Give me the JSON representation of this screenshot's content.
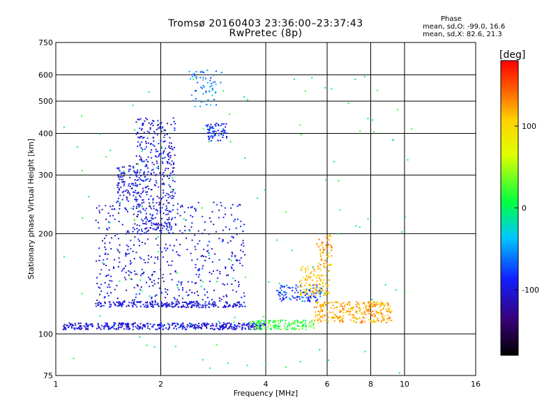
{
  "chart_data": {
    "type": "scatter",
    "title": "Tromsø 20160403 23:36:00–23:37:43",
    "subtitle": "RwPretec (8p)",
    "xlabel": "Frequency [MHz]",
    "ylabel": "Stationary phase Virtual Height [km]",
    "x_scale": "log",
    "y_scale": "log",
    "xlim": [
      1,
      16
    ],
    "ylim": [
      75,
      750
    ],
    "x_ticks": [
      "1",
      "2",
      "4",
      "6",
      "8",
      "10",
      "16"
    ],
    "y_ticks": [
      "75",
      "100",
      "200",
      "300",
      "400",
      "500",
      "600",
      "750"
    ],
    "grid": true,
    "legend": {
      "heading": "Phase",
      "line1": "mean, sd,O: -99.0, 16.6",
      "line2": "mean, sd,X:  82.6, 21.3"
    },
    "colorbar": {
      "label": "[deg]",
      "ticks": [
        "100",
        "0",
        "-100"
      ],
      "tick_values": [
        100,
        0,
        -100
      ],
      "range": [
        -180,
        180
      ]
    },
    "clusters": [
      {
        "x": [
          1.05,
          4.0
        ],
        "y": [
          103,
          108
        ],
        "n": 420,
        "phase": -100
      },
      {
        "x": [
          3.6,
          5.5
        ],
        "y": [
          103,
          110
        ],
        "n": 140,
        "phase": 20
      },
      {
        "x": [
          5.5,
          9.2
        ],
        "y": [
          108,
          125
        ],
        "n": 300,
        "phase": 120
      },
      {
        "x": [
          1.3,
          3.5
        ],
        "y": [
          120,
          125
        ],
        "n": 220,
        "phase": -100
      },
      {
        "x": [
          4.3,
          5.8
        ],
        "y": [
          125,
          140
        ],
        "n": 110,
        "phase": -80
      },
      {
        "x": [
          5.0,
          6.1
        ],
        "y": [
          130,
          160
        ],
        "n": 120,
        "phase": 110
      },
      {
        "x": [
          5.6,
          6.2
        ],
        "y": [
          160,
          200
        ],
        "n": 60,
        "phase": 120
      },
      {
        "x": [
          1.7,
          2.2
        ],
        "y": [
          200,
          450
        ],
        "n": 380,
        "phase": -100
      },
      {
        "x": [
          1.5,
          1.7
        ],
        "y": [
          250,
          320
        ],
        "n": 90,
        "phase": -100
      },
      {
        "x": [
          1.3,
          3.5
        ],
        "y": [
          120,
          250
        ],
        "n": 520,
        "phase": -100
      },
      {
        "x": [
          2.7,
          3.1
        ],
        "y": [
          380,
          430
        ],
        "n": 70,
        "phase": -85
      },
      {
        "x": [
          2.4,
          3.0
        ],
        "y": [
          480,
          620
        ],
        "n": 60,
        "phase": -60
      },
      {
        "x": [
          1.05,
          10.5
        ],
        "y": [
          76,
          600
        ],
        "n": 130,
        "phase": 0
      }
    ]
  }
}
